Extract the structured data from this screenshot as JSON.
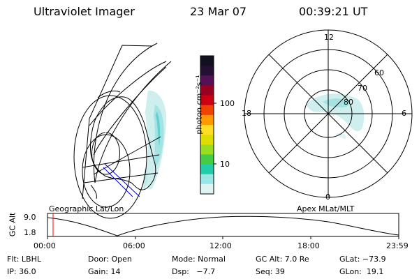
{
  "header": {
    "instrument": "Ultraviolet Imager",
    "date": "23 Mar 07",
    "time": "00:39:21 UT"
  },
  "colorbar": {
    "label": "photon cm⁻²s⁻¹",
    "ticks": [
      "100",
      "10"
    ],
    "colors": [
      "#111122",
      "#221133",
      "#551155",
      "#990022",
      "#cc0011",
      "#ee4400",
      "#ff9900",
      "#ffdd22",
      "#dddd00",
      "#99dd22",
      "#44cc44",
      "#22ccaa",
      "#99e6e6",
      "#dff3f3"
    ]
  },
  "geo_map": {
    "label": "Geographic Lat/Lon"
  },
  "polar_map": {
    "label": "Apex MLat/MLT",
    "mlt_labels": {
      "top": "12",
      "left": "18",
      "right": "6",
      "bottom": "0"
    },
    "lat_labels": [
      "60",
      "70",
      "80"
    ]
  },
  "altitude_plot": {
    "ylabel": "GC Alt",
    "y_ticks": [
      "9.0",
      "1.8"
    ],
    "x_ticks": [
      "00:00",
      "06:00",
      "12:00",
      "18:00",
      "23:59"
    ],
    "marker_color": "#ff0000"
  },
  "status": {
    "row1": {
      "filter": "Flt: LBHL",
      "door": "Door: Open",
      "mode": "Mode: Normal",
      "gc_alt": "GC Alt: 7.0 Re",
      "glat": "GLat: −73.9"
    },
    "row2": {
      "ip": "IP: 36.0",
      "gain": "Gain: 14",
      "dsp": "Dsp:   −7.7",
      "seq": "Seq: 39",
      "glon": "GLon:  19.1"
    }
  }
}
